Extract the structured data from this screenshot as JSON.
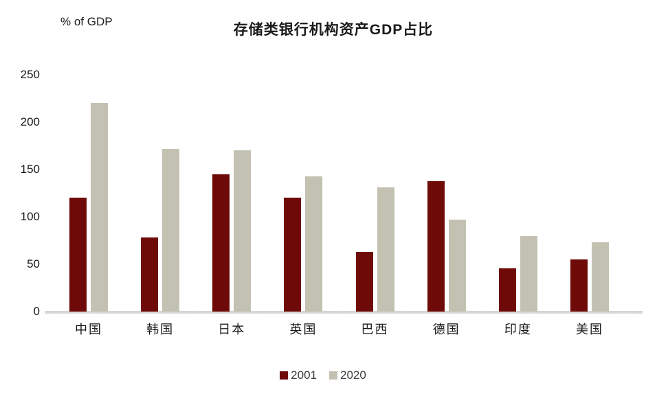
{
  "chart_data": {
    "type": "bar",
    "title": "存储类银行机构资产GDP占比",
    "ylabel": "% of GDP",
    "xlabel": "",
    "categories": [
      "中国",
      "韩国",
      "日本",
      "英国",
      "巴西",
      "德国",
      "印度",
      "美国"
    ],
    "series": [
      {
        "name": "2001",
        "color": "#6E0B08",
        "values": [
          120,
          78,
          145,
          120,
          63,
          138,
          46,
          55
        ]
      },
      {
        "name": "2020",
        "color": "#C3C2B2",
        "values": [
          220,
          172,
          170,
          143,
          131,
          97,
          80,
          73
        ]
      }
    ],
    "ylim": [
      0,
      250
    ],
    "yticks": [
      0,
      50,
      100,
      150,
      200,
      250
    ],
    "grid": false,
    "legend_position": "bottom",
    "axis_line_color": "#d5d5d1",
    "text_color": "#1a1a1a"
  }
}
